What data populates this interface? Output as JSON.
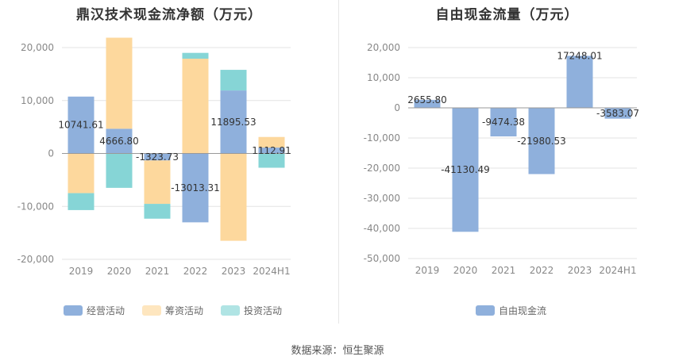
{
  "chart_data": [
    {
      "type": "bar",
      "stacked": true,
      "title": "鼎汉技术现金流净额（万元）",
      "categories": [
        "2019",
        "2020",
        "2021",
        "2022",
        "2023",
        "2024H1"
      ],
      "ylim": [
        -20000,
        20000
      ],
      "yticks": [
        "20,000",
        "10,000",
        "0",
        "-10,000",
        "-20,000"
      ],
      "ytick_values": [
        20000,
        10000,
        0,
        -10000,
        -20000
      ],
      "grid": true,
      "legend_position": "bottom",
      "series": [
        {
          "name": "经营活动",
          "color": "#8fb0dc",
          "values": [
            10741.61,
            4666.8,
            -1323.73,
            -13013.31,
            11895.53,
            1112.91
          ],
          "labels": [
            "10741.61",
            "4666.80",
            "-1323.73",
            "-13013.31",
            "11895.53",
            "1112.91"
          ]
        },
        {
          "name": "筹资活动",
          "color": "#fdd89d",
          "values": [
            -7500,
            17200,
            -8200,
            17900,
            -16500,
            2000
          ]
        },
        {
          "name": "投资活动",
          "color": "#86d5d6",
          "values": [
            -3200,
            -6500,
            -2800,
            1100,
            3900,
            -2700
          ]
        }
      ]
    },
    {
      "type": "bar",
      "title": "自由现金流量（万元）",
      "categories": [
        "2019",
        "2020",
        "2021",
        "2022",
        "2023",
        "2024H1"
      ],
      "ylim": [
        -50000,
        20000
      ],
      "yticks": [
        "20,000",
        "10,000",
        "0",
        "-10,000",
        "-20,000",
        "-30,000",
        "-40,000",
        "-50,000"
      ],
      "ytick_values": [
        20000,
        10000,
        0,
        -10000,
        -20000,
        -30000,
        -40000,
        -50000
      ],
      "grid": true,
      "legend_position": "bottom",
      "series": [
        {
          "name": "自由现金流",
          "color": "#8fb0dc",
          "values": [
            2655.8,
            -41130.49,
            -9474.38,
            -21980.53,
            17248.01,
            -3583.07
          ],
          "labels": [
            "2655.80",
            "-41130.49",
            "-9474.38",
            "-21980.53",
            "17248.01",
            "-3583.07"
          ]
        }
      ]
    }
  ],
  "footer": {
    "source": "数据来源：恒生聚源"
  }
}
